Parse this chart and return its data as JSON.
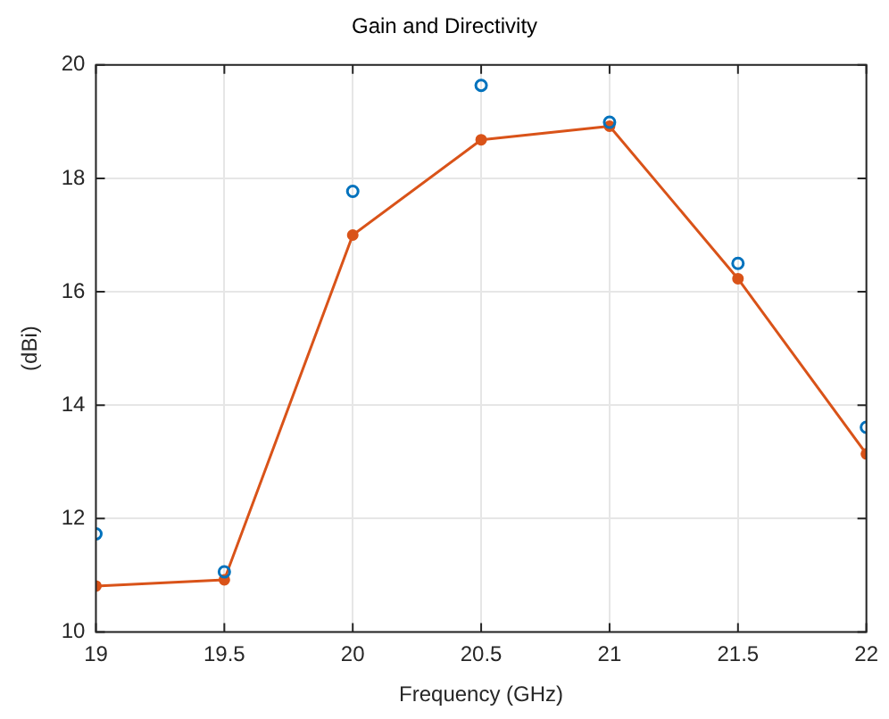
{
  "chart_data": {
    "type": "line",
    "title": "Gain and Directivity",
    "xlabel": "Frequency (GHz)",
    "ylabel": "(dBi)",
    "x": [
      19,
      19.5,
      20,
      20.5,
      21,
      21.5,
      22
    ],
    "series": [
      {
        "type": "scatter",
        "color": "#0072bd",
        "values": [
          11.73,
          11.06,
          17.77,
          19.64,
          18.99,
          16.5,
          13.61
        ]
      },
      {
        "type": "line",
        "color": "#d95319",
        "values": [
          10.81,
          10.92,
          17.0,
          18.68,
          18.92,
          16.23,
          13.14
        ]
      }
    ],
    "xlim": [
      19,
      22
    ],
    "xticks": [
      19,
      19.5,
      20,
      20.5,
      21,
      21.5,
      22
    ],
    "ylim": [
      10,
      20
    ],
    "yticks": [
      10,
      12,
      14,
      16,
      18,
      20
    ],
    "grid": true,
    "legend": false,
    "marker": "circle"
  }
}
